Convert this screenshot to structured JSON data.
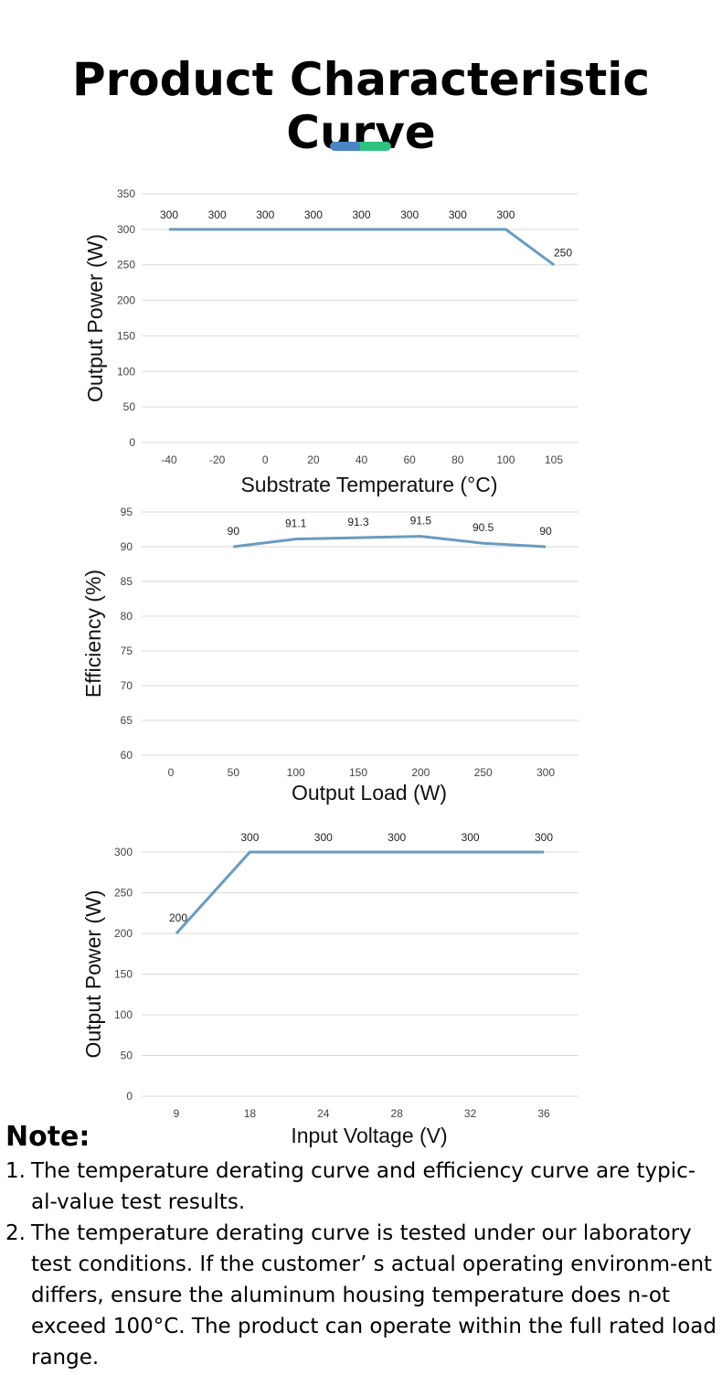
{
  "page": {
    "title": "Product Characteristic Curve",
    "accent_colors": [
      "#4a86c5",
      "#2ec27e"
    ]
  },
  "chart_data": [
    {
      "type": "line",
      "x": [
        "-40",
        "-20",
        "0",
        "20",
        "40",
        "60",
        "80",
        "100",
        "105"
      ],
      "series": [
        {
          "values": [
            300,
            300,
            300,
            300,
            300,
            300,
            300,
            300,
            250
          ],
          "color": "#6a9bbf"
        }
      ],
      "data_labels": [
        "300",
        "300",
        "300",
        "300",
        "300",
        "300",
        "300",
        "300",
        "250"
      ],
      "xlabel": "Substrate Temperature (°C)",
      "ylabel": "Output Power (W)",
      "yticks": [
        "0",
        "50",
        "100",
        "150",
        "200",
        "250",
        "300",
        "350"
      ],
      "ylim": [
        0,
        350
      ],
      "grid": true
    },
    {
      "type": "line",
      "x": [
        "0",
        "50",
        "100",
        "150",
        "200",
        "250",
        "300"
      ],
      "series": [
        {
          "values": [
            null,
            90,
            91.1,
            91.3,
            91.5,
            90.5,
            90
          ],
          "color": "#6a9bbf"
        }
      ],
      "data_labels": [
        "",
        "90",
        "91.1",
        "91.3",
        "91.5",
        "90.5",
        "90"
      ],
      "xlabel": "Output Load (W)",
      "ylabel": "Efficiency (%)",
      "yticks": [
        "60",
        "65",
        "70",
        "75",
        "80",
        "85",
        "90",
        "95"
      ],
      "ylim": [
        60,
        95
      ],
      "grid": true
    },
    {
      "type": "line",
      "x": [
        "9",
        "18",
        "24",
        "28",
        "32",
        "36"
      ],
      "series": [
        {
          "values": [
            200,
            300,
            300,
            300,
            300,
            300
          ],
          "color": "#6a9bbf"
        }
      ],
      "data_labels": [
        "200",
        "300",
        "300",
        "300",
        "300",
        "300"
      ],
      "xlabel": "Input Voltage (V)",
      "ylabel": "Output Power (W)",
      "yticks": [
        "0",
        "50",
        "100",
        "150",
        "200",
        "250",
        "300"
      ],
      "ylim": [
        0,
        300
      ],
      "grid": true
    }
  ],
  "notes": {
    "title": "Note:",
    "items": [
      {
        "num": "1.",
        "text": "The temperature derating curve and efficiency curve are typic-al-value test results."
      },
      {
        "num": "2.",
        "text": "The temperature derating curve is tested under our laboratory test conditions. If the customer’ s actual operating environm-ent differs, ensure the aluminum housing temperature does n-ot exceed 100°C. The product can operate within the full rated load range."
      }
    ]
  }
}
